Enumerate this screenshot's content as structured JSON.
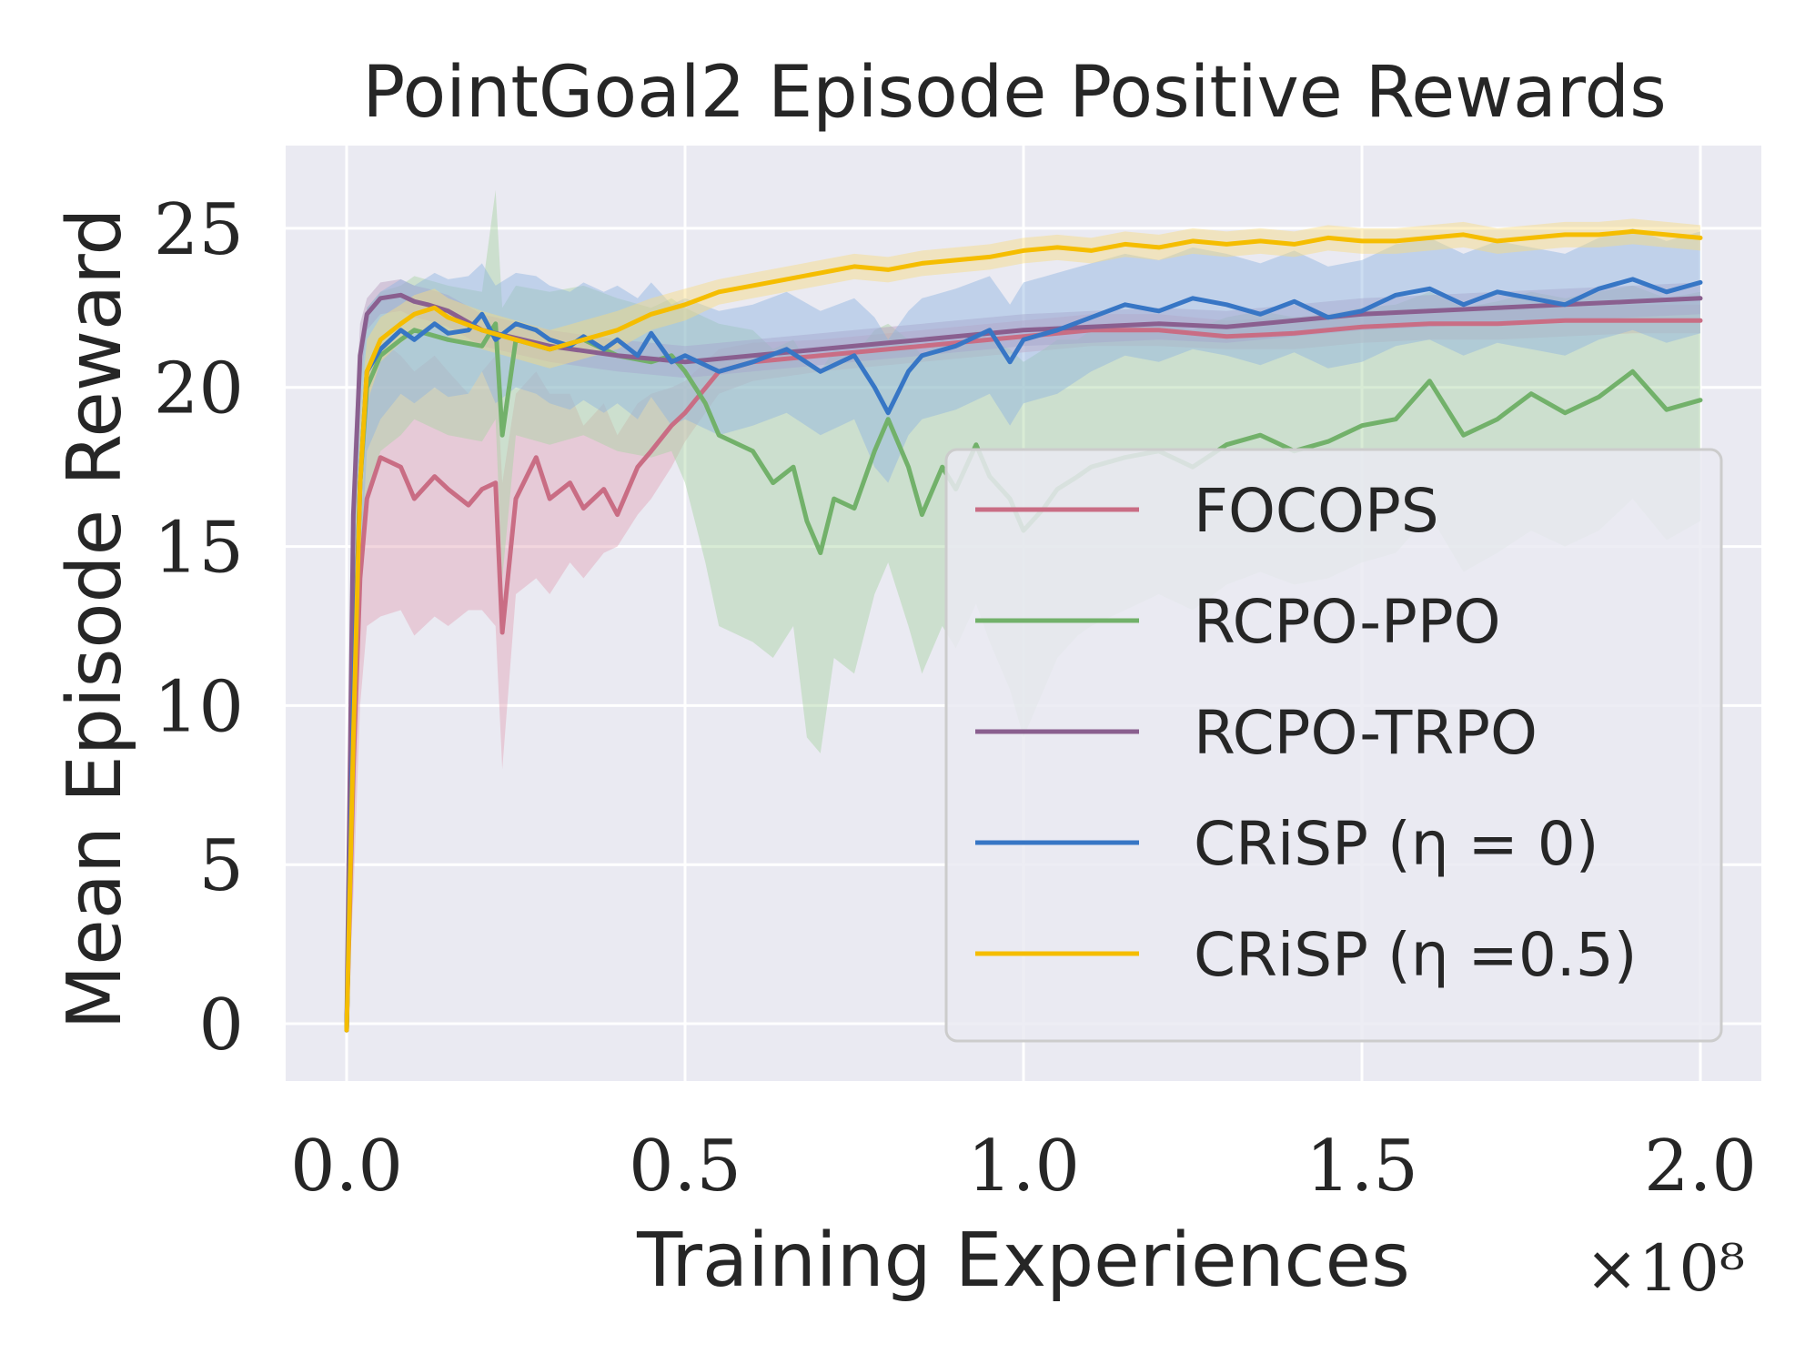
{
  "chart_data": {
    "type": "line",
    "title": "PointGoal2 Episode Positive Rewards",
    "xlabel": "Training Experiences",
    "ylabel": "Mean Episode Reward",
    "x_multiplier": "×10⁸",
    "xlim": [
      -0.09,
      2.09
    ],
    "ylim": [
      -1.8,
      27.6
    ],
    "xticks": [
      0.0,
      0.5,
      1.0,
      1.5,
      2.0
    ],
    "xtick_labels": [
      "0.0",
      "0.5",
      "1.0",
      "1.5",
      "2.0"
    ],
    "yticks": [
      0,
      5,
      10,
      15,
      20,
      25
    ],
    "ytick_labels": [
      "0",
      "5",
      "10",
      "15",
      "20",
      "25"
    ],
    "grid": true,
    "legend_position": "lower-right",
    "series": [
      {
        "name": "FOCOPS",
        "color": "#c96d84",
        "band_color": "#e3a4b6",
        "x": [
          0.0,
          0.01,
          0.02,
          0.03,
          0.05,
          0.08,
          0.1,
          0.13,
          0.15,
          0.18,
          0.2,
          0.22,
          0.23,
          0.25,
          0.28,
          0.3,
          0.33,
          0.35,
          0.38,
          0.4,
          0.43,
          0.45,
          0.48,
          0.5,
          0.55,
          0.6,
          0.7,
          0.8,
          0.9,
          1.0,
          1.1,
          1.2,
          1.3,
          1.4,
          1.5,
          1.6,
          1.7,
          1.8,
          1.9,
          2.0
        ],
        "y": [
          -0.2,
          8,
          14,
          16.5,
          17.8,
          17.5,
          16.5,
          17.2,
          16.8,
          16.3,
          16.8,
          17.0,
          12.3,
          16.5,
          17.8,
          16.5,
          17.0,
          16.2,
          16.8,
          16.0,
          17.5,
          18.0,
          18.8,
          19.2,
          20.5,
          20.8,
          21.0,
          21.2,
          21.4,
          21.6,
          21.8,
          21.8,
          21.6,
          21.7,
          21.9,
          22.0,
          22.0,
          22.1,
          22.1,
          22.1
        ],
        "lower": [
          -0.2,
          4,
          10,
          12.5,
          12.8,
          13.0,
          12.2,
          12.8,
          12.5,
          13.0,
          13.0,
          12.5,
          8.0,
          13.5,
          14.0,
          13.5,
          14.5,
          14.0,
          14.8,
          15.0,
          16.0,
          16.5,
          17.5,
          18.3,
          19.8,
          20.2,
          20.5,
          20.7,
          20.9,
          21.1,
          21.3,
          21.3,
          21.2,
          21.2,
          21.4,
          21.5,
          21.5,
          21.6,
          21.7,
          21.7
        ],
        "upper": [
          -0.2,
          12,
          18,
          20.5,
          21.5,
          21.0,
          20.5,
          21.0,
          20.5,
          19.8,
          20.5,
          21.0,
          17.0,
          19.8,
          20.5,
          19.8,
          19.8,
          18.8,
          19.5,
          18.5,
          19.5,
          19.8,
          20.0,
          20.2,
          21.2,
          21.4,
          21.5,
          21.7,
          21.9,
          22.1,
          22.3,
          22.3,
          22.1,
          22.2,
          22.4,
          22.5,
          22.5,
          22.6,
          22.6,
          22.6
        ]
      },
      {
        "name": "RCPO-PPO",
        "color": "#72b16a",
        "band_color": "#a9d3a2",
        "x": [
          0.0,
          0.01,
          0.02,
          0.03,
          0.05,
          0.08,
          0.1,
          0.15,
          0.2,
          0.22,
          0.23,
          0.25,
          0.3,
          0.35,
          0.4,
          0.45,
          0.48,
          0.5,
          0.53,
          0.55,
          0.6,
          0.63,
          0.66,
          0.68,
          0.7,
          0.72,
          0.75,
          0.78,
          0.8,
          0.83,
          0.85,
          0.88,
          0.9,
          0.93,
          0.95,
          0.98,
          1.0,
          1.03,
          1.05,
          1.08,
          1.1,
          1.15,
          1.2,
          1.25,
          1.3,
          1.35,
          1.4,
          1.45,
          1.5,
          1.55,
          1.6,
          1.65,
          1.7,
          1.75,
          1.8,
          1.85,
          1.9,
          1.95,
          2.0
        ],
        "y": [
          -0.2,
          10,
          17,
          20,
          21,
          21.5,
          21.8,
          21.5,
          21.3,
          22.0,
          18.5,
          21.5,
          21.2,
          21.5,
          21.0,
          20.8,
          21.0,
          20.5,
          19.5,
          18.5,
          18.0,
          17.0,
          17.5,
          15.8,
          14.8,
          16.5,
          16.2,
          18.0,
          19.0,
          17.5,
          16.0,
          17.5,
          16.8,
          18.2,
          17.2,
          16.5,
          15.5,
          16.2,
          16.8,
          17.2,
          17.5,
          17.8,
          18.0,
          17.5,
          18.2,
          18.5,
          18.0,
          18.3,
          18.8,
          19.0,
          20.2,
          18.5,
          19.0,
          19.8,
          19.2,
          19.7,
          20.5,
          19.3,
          19.6
        ],
        "lower": [
          -0.2,
          5,
          13,
          16.5,
          18,
          18.5,
          19,
          18.5,
          18.3,
          19.0,
          14.0,
          18.5,
          18.2,
          18.5,
          18.0,
          17.8,
          18.0,
          17.0,
          14.5,
          12.5,
          12.0,
          11.5,
          12.5,
          9.0,
          8.5,
          11.5,
          11.0,
          13.5,
          14.5,
          12.5,
          11.0,
          12.5,
          11.8,
          13.2,
          12.0,
          10.5,
          9.0,
          10.5,
          11.5,
          12.2,
          12.5,
          13.0,
          13.5,
          13.0,
          13.8,
          14.2,
          13.8,
          14.0,
          14.5,
          14.8,
          16.0,
          14.2,
          14.8,
          15.5,
          15.0,
          15.5,
          16.5,
          15.2,
          15.8
        ],
        "upper": [
          -0.2,
          15,
          20,
          22.5,
          23,
          23.2,
          23.5,
          23.2,
          23.0,
          26.2,
          22.5,
          23.2,
          23.0,
          23.2,
          22.8,
          22.5,
          22.8,
          22.5,
          22.2,
          22.0,
          21.8,
          21.2,
          21.5,
          20.8,
          20.5,
          21.2,
          21.0,
          21.8,
          22.0,
          21.5,
          21.0,
          21.5,
          21.2,
          21.8,
          21.5,
          21.2,
          20.8,
          21.2,
          21.5,
          21.5,
          21.8,
          22.0,
          22.0,
          21.8,
          22.2,
          22.4,
          22.2,
          22.3,
          22.5,
          22.6,
          23.0,
          22.5,
          22.7,
          23.0,
          22.8,
          23.0,
          23.2,
          22.8,
          23.0
        ]
      },
      {
        "name": "RCPO-TRPO",
        "color": "#8a5f8f",
        "band_color": "#b99bbd",
        "x": [
          0.0,
          0.005,
          0.01,
          0.02,
          0.03,
          0.05,
          0.08,
          0.1,
          0.12,
          0.15,
          0.2,
          0.3,
          0.4,
          0.5,
          0.6,
          0.7,
          0.8,
          0.9,
          1.0,
          1.1,
          1.2,
          1.3,
          1.4,
          1.5,
          1.6,
          1.7,
          1.8,
          1.9,
          2.0
        ],
        "y": [
          -0.2,
          8,
          16,
          21,
          22.3,
          22.8,
          22.9,
          22.7,
          22.6,
          22.4,
          21.8,
          21.3,
          21.0,
          20.8,
          21.0,
          21.2,
          21.4,
          21.6,
          21.8,
          21.9,
          22.0,
          21.9,
          22.1,
          22.3,
          22.4,
          22.5,
          22.6,
          22.7,
          22.8
        ],
        "lower": [
          -0.2,
          6,
          14,
          20,
          21.8,
          22.3,
          22.4,
          22.2,
          22.1,
          21.9,
          21.3,
          20.8,
          20.5,
          20.3,
          20.5,
          20.7,
          20.9,
          21.1,
          21.3,
          21.4,
          21.5,
          21.4,
          21.6,
          21.8,
          21.9,
          22.0,
          22.1,
          22.2,
          22.3
        ],
        "upper": [
          -0.2,
          10,
          18,
          22,
          22.8,
          23.3,
          23.4,
          23.2,
          23.1,
          22.9,
          22.3,
          21.8,
          21.5,
          21.3,
          21.5,
          21.7,
          21.9,
          22.1,
          22.3,
          22.4,
          22.5,
          22.4,
          22.6,
          22.8,
          22.9,
          23.0,
          23.1,
          23.2,
          23.3
        ]
      },
      {
        "name": "CRiSP (η = 0)",
        "color": "#3776c5",
        "band_color": "#8fb4e0",
        "x": [
          0.0,
          0.01,
          0.02,
          0.03,
          0.05,
          0.08,
          0.1,
          0.13,
          0.15,
          0.18,
          0.2,
          0.22,
          0.25,
          0.28,
          0.3,
          0.33,
          0.35,
          0.38,
          0.4,
          0.43,
          0.45,
          0.48,
          0.5,
          0.55,
          0.6,
          0.65,
          0.7,
          0.75,
          0.78,
          0.8,
          0.83,
          0.85,
          0.9,
          0.95,
          0.98,
          1.0,
          1.05,
          1.1,
          1.15,
          1.2,
          1.25,
          1.3,
          1.35,
          1.4,
          1.45,
          1.5,
          1.55,
          1.6,
          1.65,
          1.7,
          1.75,
          1.8,
          1.85,
          1.9,
          1.95,
          2.0
        ],
        "y": [
          -0.2,
          10,
          17,
          20.5,
          21.2,
          21.8,
          21.5,
          22.0,
          21.7,
          21.8,
          22.3,
          21.5,
          22.0,
          21.8,
          21.5,
          21.3,
          21.6,
          21.2,
          21.5,
          21.0,
          21.7,
          20.8,
          21.0,
          20.5,
          20.8,
          21.2,
          20.5,
          21.0,
          20.0,
          19.2,
          20.5,
          21.0,
          21.3,
          21.8,
          20.8,
          21.5,
          21.8,
          22.2,
          22.6,
          22.4,
          22.8,
          22.6,
          22.3,
          22.7,
          22.2,
          22.4,
          22.9,
          23.1,
          22.6,
          23.0,
          22.8,
          22.6,
          23.1,
          23.4,
          23.0,
          23.3
        ],
        "lower": [
          -0.2,
          6,
          14,
          18.0,
          19.0,
          19.8,
          19.5,
          20.0,
          19.7,
          19.8,
          20.5,
          19.5,
          20.0,
          19.8,
          19.5,
          19.3,
          19.6,
          19.2,
          19.5,
          19.0,
          19.7,
          18.8,
          19.0,
          18.5,
          18.8,
          19.2,
          18.5,
          19.0,
          17.5,
          17.0,
          18.5,
          19.0,
          19.3,
          19.8,
          18.8,
          19.5,
          19.8,
          20.5,
          21.0,
          20.8,
          21.2,
          21.0,
          20.7,
          21.1,
          20.6,
          20.8,
          21.3,
          21.5,
          21.0,
          21.4,
          21.2,
          21.0,
          21.5,
          21.8,
          21.4,
          21.7
        ],
        "upper": [
          -0.2,
          14,
          20,
          22.5,
          23.0,
          23.4,
          23.2,
          23.6,
          23.4,
          23.5,
          23.9,
          23.2,
          23.6,
          23.5,
          23.2,
          23.0,
          23.3,
          23.0,
          23.2,
          22.8,
          23.3,
          22.6,
          22.8,
          22.4,
          22.6,
          23.0,
          22.4,
          22.8,
          22.2,
          21.5,
          22.4,
          22.8,
          23.1,
          23.5,
          22.6,
          23.3,
          23.6,
          23.9,
          24.2,
          24.0,
          24.4,
          24.2,
          23.9,
          24.3,
          23.8,
          24.0,
          24.5,
          24.7,
          24.2,
          24.6,
          24.4,
          24.2,
          24.7,
          25.0,
          24.6,
          24.9
        ]
      },
      {
        "name": "CRiSP (η =0.5)",
        "color": "#f5bd00",
        "band_color": "#f8dc80",
        "x": [
          0.0,
          0.01,
          0.02,
          0.03,
          0.05,
          0.08,
          0.1,
          0.13,
          0.15,
          0.2,
          0.25,
          0.3,
          0.35,
          0.4,
          0.45,
          0.5,
          0.55,
          0.6,
          0.65,
          0.7,
          0.75,
          0.8,
          0.85,
          0.9,
          0.95,
          1.0,
          1.05,
          1.1,
          1.15,
          1.2,
          1.25,
          1.3,
          1.35,
          1.4,
          1.45,
          1.5,
          1.55,
          1.6,
          1.65,
          1.7,
          1.75,
          1.8,
          1.85,
          1.9,
          1.95,
          2.0
        ],
        "y": [
          -0.2,
          9,
          17,
          20.5,
          21.5,
          22.0,
          22.3,
          22.5,
          22.2,
          21.8,
          21.5,
          21.2,
          21.5,
          21.8,
          22.3,
          22.6,
          23.0,
          23.2,
          23.4,
          23.6,
          23.8,
          23.7,
          23.9,
          24.0,
          24.1,
          24.3,
          24.4,
          24.3,
          24.5,
          24.4,
          24.6,
          24.5,
          24.6,
          24.5,
          24.7,
          24.6,
          24.6,
          24.7,
          24.8,
          24.6,
          24.7,
          24.8,
          24.8,
          24.9,
          24.8,
          24.7
        ],
        "lower": [
          -0.2,
          7,
          15,
          19.5,
          20.8,
          21.4,
          21.7,
          21.9,
          21.6,
          21.2,
          20.9,
          20.6,
          20.9,
          21.2,
          21.8,
          22.1,
          22.6,
          22.8,
          23.0,
          23.2,
          23.4,
          23.3,
          23.5,
          23.6,
          23.7,
          23.9,
          24.0,
          23.9,
          24.1,
          24.0,
          24.2,
          24.1,
          24.2,
          24.1,
          24.3,
          24.2,
          24.2,
          24.3,
          24.4,
          24.2,
          24.3,
          24.4,
          24.4,
          24.5,
          24.4,
          24.3
        ],
        "upper": [
          -0.2,
          11,
          19,
          21.5,
          22.2,
          22.6,
          22.9,
          23.1,
          22.8,
          22.4,
          22.1,
          21.8,
          22.1,
          22.4,
          22.8,
          23.1,
          23.4,
          23.6,
          23.8,
          24.0,
          24.2,
          24.1,
          24.3,
          24.4,
          24.5,
          24.7,
          24.8,
          24.7,
          24.9,
          24.8,
          25.0,
          24.9,
          25.0,
          24.9,
          25.1,
          25.0,
          25.0,
          25.1,
          25.2,
          25.0,
          25.1,
          25.2,
          25.2,
          25.3,
          25.2,
          25.1
        ]
      }
    ]
  }
}
